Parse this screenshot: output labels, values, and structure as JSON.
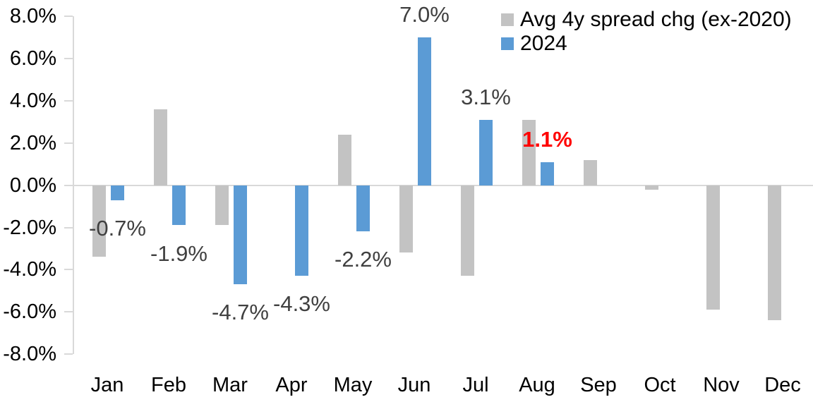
{
  "chart_data": {
    "type": "bar",
    "title": "",
    "categories": [
      "Jan",
      "Feb",
      "Mar",
      "Apr",
      "May",
      "Jun",
      "Jul",
      "Aug",
      "Sep",
      "Oct",
      "Nov",
      "Dec"
    ],
    "series": [
      {
        "name": "Avg 4y spread chg (ex-2020)",
        "color": "#c3c3c3",
        "values": [
          -3.4,
          3.6,
          -1.9,
          0,
          2.4,
          -3.2,
          -4.3,
          3.1,
          1.2,
          -0.2,
          -5.9,
          -6.4
        ]
      },
      {
        "name": "2024",
        "color": "#5b9bd5",
        "values": [
          -0.7,
          -1.9,
          -4.7,
          -4.3,
          -2.2,
          7.0,
          3.1,
          1.1,
          null,
          null,
          null,
          null
        ]
      }
    ],
    "data_labels": [
      {
        "category": "Jan",
        "series": "2024",
        "text": "-0.7%",
        "color": "#404040",
        "bold": false
      },
      {
        "category": "Feb",
        "series": "2024",
        "text": "-1.9%",
        "color": "#404040",
        "bold": false
      },
      {
        "category": "Mar",
        "series": "2024",
        "text": "-4.7%",
        "color": "#404040",
        "bold": false
      },
      {
        "category": "Apr",
        "series": "2024",
        "text": "-4.3%",
        "color": "#404040",
        "bold": false
      },
      {
        "category": "May",
        "series": "2024",
        "text": "-2.2%",
        "color": "#404040",
        "bold": false
      },
      {
        "category": "Jun",
        "series": "2024",
        "text": "7.0%",
        "color": "#404040",
        "bold": false
      },
      {
        "category": "Jul",
        "series": "2024",
        "text": "3.1%",
        "color": "#404040",
        "bold": false
      },
      {
        "category": "Aug",
        "series": "2024",
        "text": "1.1%",
        "color": "#ff0000",
        "bold": true
      }
    ],
    "y_ticks": [
      {
        "label": "8.0%",
        "value": 8
      },
      {
        "label": "6.0%",
        "value": 6
      },
      {
        "label": "4.0%",
        "value": 4
      },
      {
        "label": "2.0%",
        "value": 2
      },
      {
        "label": "0.0%",
        "value": 0
      },
      {
        "label": "-2.0%",
        "value": -2
      },
      {
        "label": "-4.0%",
        "value": -4
      },
      {
        "label": "-6.0%",
        "value": -6
      },
      {
        "label": "-8.0%",
        "value": -8
      }
    ],
    "ylim": [
      -8,
      8
    ],
    "xlabel": "",
    "ylabel": "",
    "grid": false,
    "legend_position": "top-right",
    "axis_color": "#d9d9d9",
    "background_color": "#ffffff"
  }
}
